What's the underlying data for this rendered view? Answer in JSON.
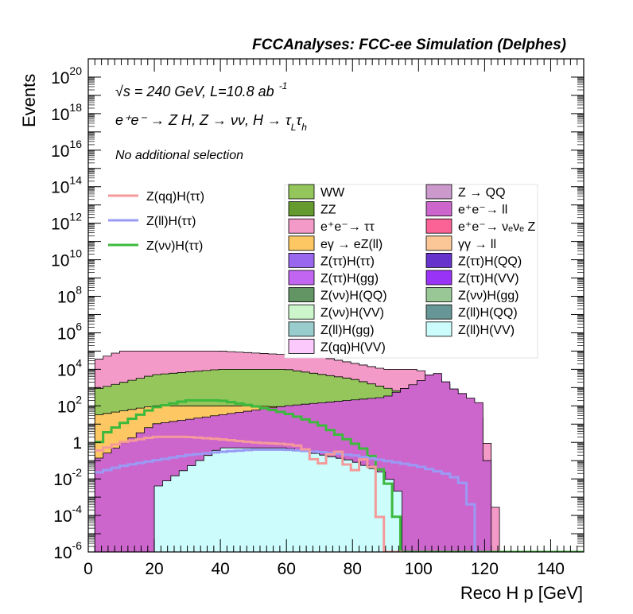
{
  "header": {
    "title": "FCCAnalyses: FCC-ee Simulation (Delphes)"
  },
  "annotations": {
    "energy": "√s = 240 GeV, L=10.8 ab",
    "energy_sup": "-1",
    "process": "e⁺e⁻ → Z H, Z → νν, H → τ",
    "process_sub1": "L",
    "process_tau": "τ",
    "process_sub2": "h",
    "selection": "No additional selection"
  },
  "chart_data": {
    "type": "area",
    "title": "FCCAnalyses: FCC-ee Simulation (Delphes)",
    "xlabel": "Reco H p [GeV]",
    "ylabel": "Events",
    "xlim": [
      0,
      150
    ],
    "ylim": [
      1e-06,
      1e+21
    ],
    "yscale": "log",
    "x_ticks": [
      "0",
      "20",
      "40",
      "60",
      "80",
      "100",
      "120",
      "140"
    ],
    "y_ticks": [
      {
        "base": "10",
        "exp": "-6",
        "value": 1e-06
      },
      {
        "base": "10",
        "exp": "-4",
        "value": 0.0001
      },
      {
        "base": "10",
        "exp": "-2",
        "value": 0.01
      },
      {
        "base": "1",
        "exp": "",
        "value": 1
      },
      {
        "base": "10",
        "exp": "2",
        "value": 100.0
      },
      {
        "base": "10",
        "exp": "4",
        "value": 10000.0
      },
      {
        "base": "10",
        "exp": "6",
        "value": 1000000.0
      },
      {
        "base": "10",
        "exp": "8",
        "value": 100000000.0
      },
      {
        "base": "10",
        "exp": "10",
        "value": 10000000000.0
      },
      {
        "base": "10",
        "exp": "12",
        "value": 1000000000000.0
      },
      {
        "base": "10",
        "exp": "14",
        "value": 100000000000000.0
      },
      {
        "base": "10",
        "exp": "16",
        "value": 1e+16
      },
      {
        "base": "10",
        "exp": "18",
        "value": 1e+18
      },
      {
        "base": "10",
        "exp": "20",
        "value": 1e+20
      }
    ],
    "legend_signals": [
      {
        "label": "Z(qq)H(ττ)",
        "color": "#f59a9a"
      },
      {
        "label": "Z(ll)H(ττ)",
        "color": "#9a9af5"
      },
      {
        "label": "Z(νν)H(ττ)",
        "color": "#3cb93c"
      }
    ],
    "legend_backgrounds_col1": [
      {
        "label": "WW",
        "color": "#94c65c"
      },
      {
        "label": "ZZ",
        "color": "#649a2e"
      },
      {
        "label": "e⁺e⁻→ ττ",
        "color": "#f49ac8"
      },
      {
        "label": "eγ → eZ(ll)",
        "color": "#fdc764"
      },
      {
        "label": "Z(ττ)H(ττ)",
        "color": "#9966ee"
      },
      {
        "label": "Z(ττ)H(gg)",
        "color": "#c266f2"
      },
      {
        "label": "Z(νν)H(QQ)",
        "color": "#639463"
      },
      {
        "label": "Z(νν)H(VV)",
        "color": "#ccf5cc"
      },
      {
        "label": "Z(ll)H(gg)",
        "color": "#99cccc"
      },
      {
        "label": "Z(qq)H(VV)",
        "color": "#fcc9fc"
      }
    ],
    "legend_backgrounds_col2": [
      {
        "label": "Z → QQ",
        "color": "#cc99cc"
      },
      {
        "label": "e⁺e⁻→ ll",
        "color": "#cc66cc"
      },
      {
        "label": "e⁺e⁻→ νₑνₑ Z",
        "color": "#fb6396"
      },
      {
        "label": "γγ → ll",
        "color": "#fcc796"
      },
      {
        "label": "Z(ττ)H(QQ)",
        "color": "#6633cc"
      },
      {
        "label": "Z(ττ)H(VV)",
        "color": "#9933f5"
      },
      {
        "label": "Z(νν)H(gg)",
        "color": "#99c796"
      },
      {
        "label": "Z(ll)H(QQ)",
        "color": "#669696"
      },
      {
        "label": "Z(ll)H(VV)",
        "color": "#ccfcfc"
      }
    ],
    "bin_width": 2.5,
    "stack_layers": [
      {
        "name": "Z(ll)H(VV)",
        "color": "#ccfcfc",
        "x": [
          20,
          40,
          60,
          80,
          90,
          95
        ],
        "y": [
          0.003,
          0.5,
          0.5,
          0.1,
          0.02,
          0.001
        ]
      },
      {
        "name": "e⁺e⁻→ ll",
        "color": "#cc66cc",
        "x": [
          2,
          20,
          60,
          90,
          100,
          105,
          110,
          120,
          122
        ],
        "y": [
          0.1,
          10,
          100,
          300,
          2000,
          8000,
          1000,
          100,
          1e-06
        ]
      },
      {
        "name": "eγ → eZ(ll)",
        "color": "#fdc764",
        "x": [
          2,
          20,
          50,
          90,
          100,
          105,
          110,
          118,
          120
        ],
        "y": [
          30,
          100,
          100,
          50,
          200,
          1000,
          20,
          1,
          1e-06
        ]
      },
      {
        "name": "WW",
        "color": "#94c65c",
        "x": [
          2,
          20,
          40,
          60,
          80,
          90,
          100
        ],
        "y": [
          800,
          5000,
          10000,
          10000,
          3000,
          1000,
          300
        ]
      },
      {
        "name": "e⁺e⁻→ ττ",
        "color": "#f49ac8",
        "x": [
          2,
          10,
          40,
          70,
          90,
          100,
          110,
          120,
          125
        ],
        "y": [
          30000,
          100000,
          100000,
          50000,
          10000,
          10000,
          1000,
          10,
          1e-06
        ]
      }
    ],
    "signal_curves": [
      {
        "name": "Z(νν)H(ττ)",
        "color": "#3cb93c",
        "x": [
          2,
          5,
          10,
          20,
          30,
          40,
          50,
          60,
          70,
          80,
          85,
          90,
          92,
          95,
          150
        ],
        "y": [
          0.5,
          3,
          10,
          80,
          200,
          200,
          100,
          40,
          10,
          1,
          0.3,
          0.01,
          0.002,
          1e-06,
          1e-06
        ]
      },
      {
        "name": "Z(ll)H(ττ)",
        "color": "#9a9af5",
        "x": [
          2,
          10,
          20,
          30,
          40,
          50,
          60,
          70,
          80,
          90,
          100,
          108,
          112,
          115,
          118
        ],
        "y": [
          0.02,
          0.05,
          0.1,
          0.2,
          0.3,
          0.4,
          0.4,
          0.3,
          0.2,
          0.1,
          0.05,
          0.02,
          0.01,
          0.003,
          1e-06
        ]
      },
      {
        "name": "Z(qq)H(ττ)",
        "color": "#f59a9a",
        "x": [
          2,
          10,
          20,
          30,
          40,
          50,
          60,
          65,
          70,
          75,
          80,
          85,
          90,
          95
        ],
        "y": [
          0.3,
          1,
          2,
          2,
          1.5,
          1,
          0.8,
          0.6,
          0.05,
          0.5,
          0.02,
          0.3,
          1e-06,
          1e-06
        ]
      }
    ]
  }
}
